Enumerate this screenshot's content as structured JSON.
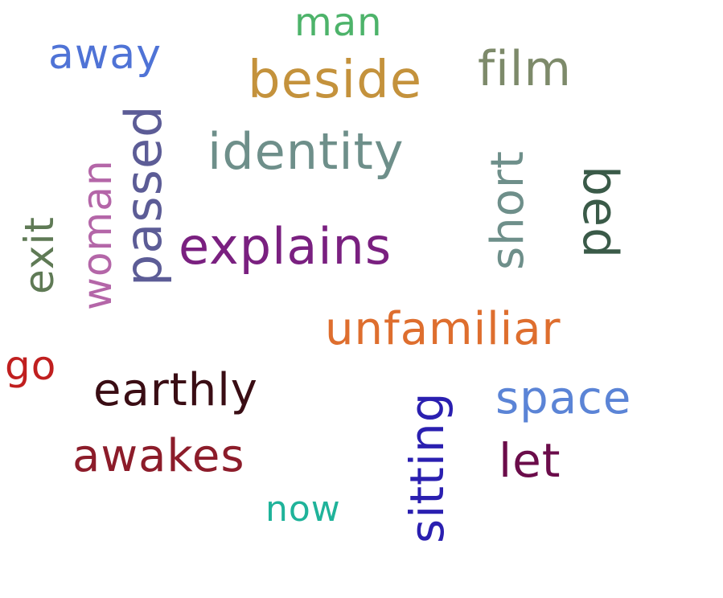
{
  "words": {
    "man": {
      "text": "man",
      "color": "#4db36a"
    },
    "away": {
      "text": "away",
      "color": "#4f73d6"
    },
    "beside": {
      "text": "beside",
      "color": "#c4923c"
    },
    "film": {
      "text": "film",
      "color": "#7d8a6a"
    },
    "identity": {
      "text": "identity",
      "color": "#6e8f8a"
    },
    "passed": {
      "text": "passed",
      "color": "#5c5c96"
    },
    "woman": {
      "text": "woman",
      "color": "#b466a8"
    },
    "exit": {
      "text": "exit",
      "color": "#5f7a55"
    },
    "explains": {
      "text": "explains",
      "color": "#7a2080"
    },
    "short": {
      "text": "short",
      "color": "#6e8f8a"
    },
    "bed": {
      "text": "bed",
      "color": "#3a5a48"
    },
    "unfamiliar": {
      "text": "unfamiliar",
      "color": "#de6e2e"
    },
    "go": {
      "text": "go",
      "color": "#c01f1f"
    },
    "earthly": {
      "text": "earthly",
      "color": "#3a0d14"
    },
    "space": {
      "text": "space",
      "color": "#5b84d6"
    },
    "awakes": {
      "text": "awakes",
      "color": "#8c1c2a"
    },
    "let": {
      "text": "let",
      "color": "#6b0c4a"
    },
    "sitting": {
      "text": "sitting",
      "color": "#2a1fb0"
    },
    "now": {
      "text": "now",
      "color": "#1fb39a"
    }
  }
}
